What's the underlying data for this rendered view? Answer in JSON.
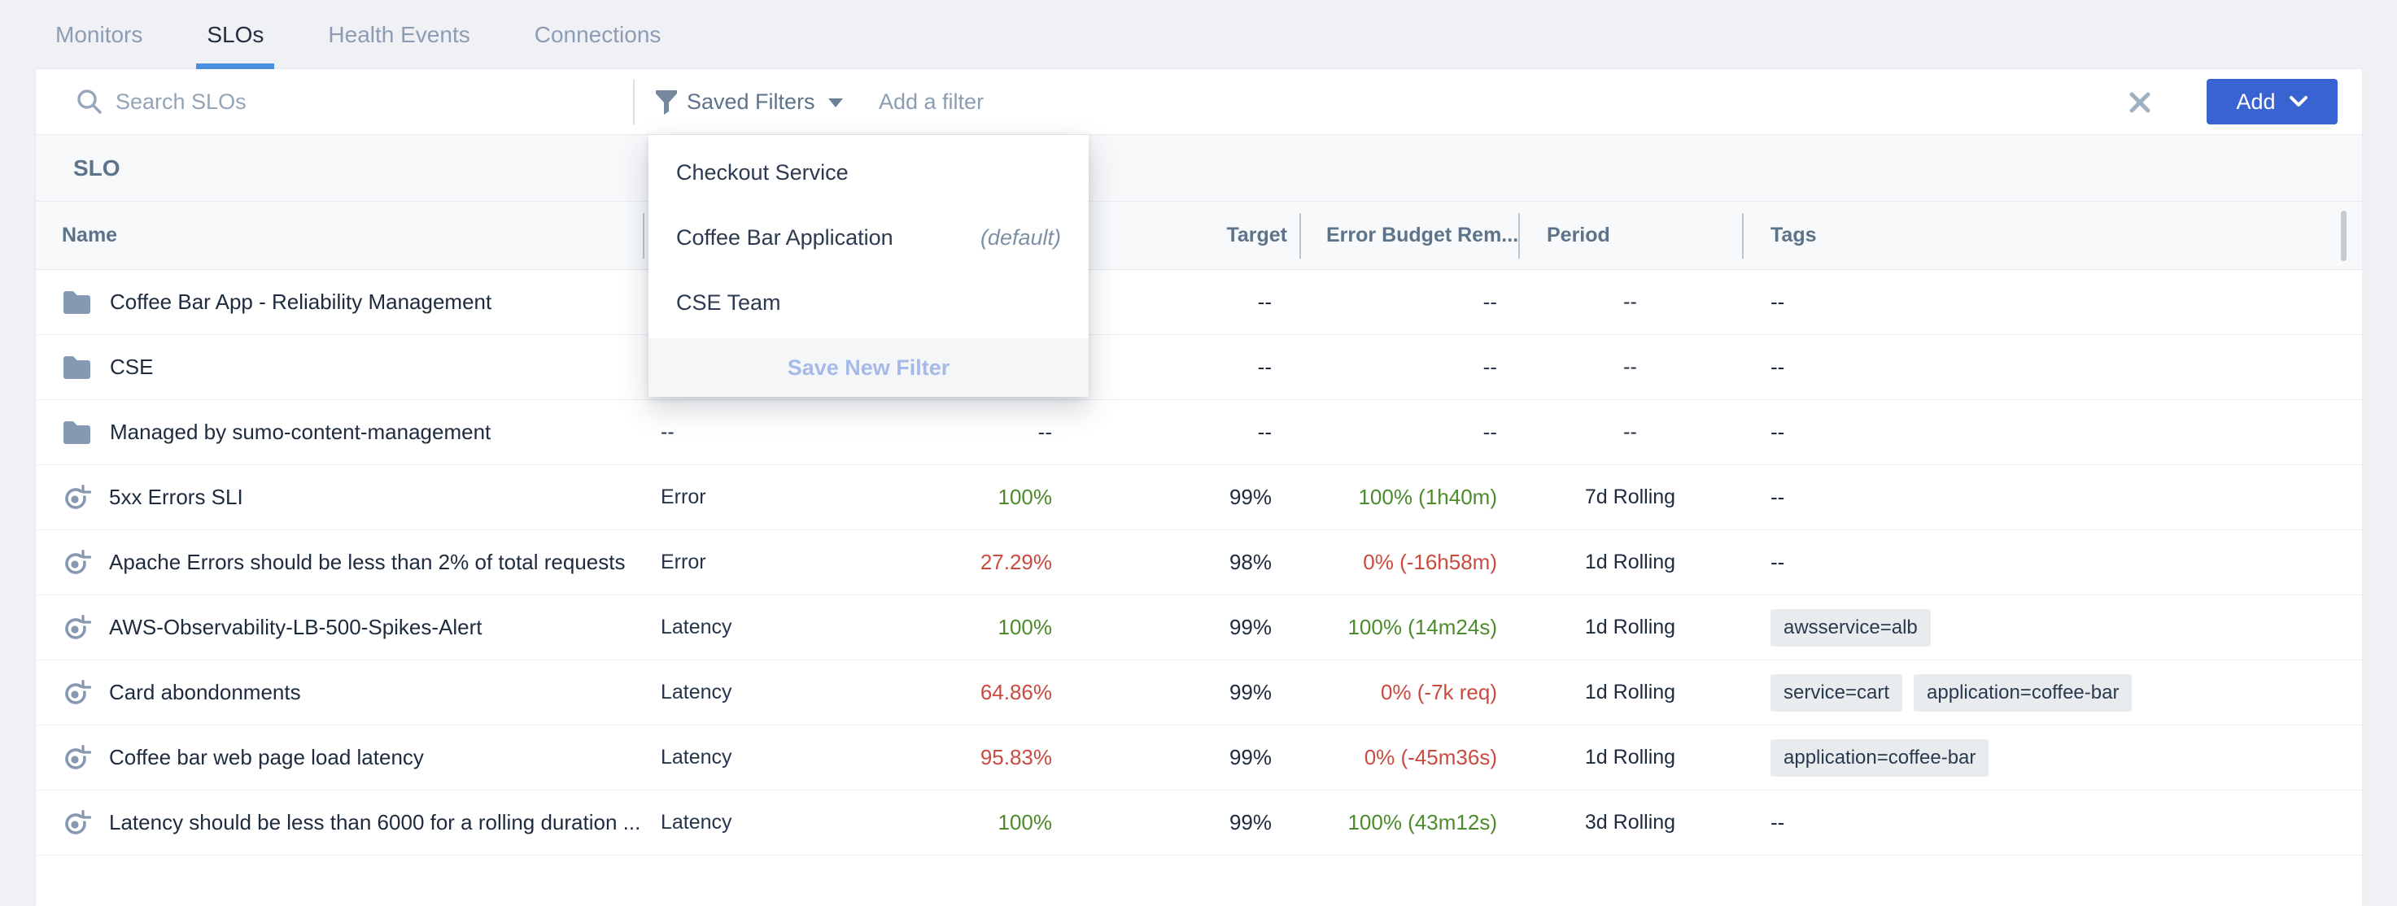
{
  "colors": {
    "accent_blue": "#3a63d2",
    "tab_underline_blue": "#4a90e2",
    "good_green": "#4b8b2b",
    "bad_red": "#c94b3f",
    "chip_bg": "#e9ecef",
    "icon_gray_blue": "#8699b3"
  },
  "tabs": [
    {
      "label": "Monitors",
      "active": false
    },
    {
      "label": "SLOs",
      "active": true
    },
    {
      "label": "Health Events",
      "active": false
    },
    {
      "label": "Connections",
      "active": false
    }
  ],
  "filter_bar": {
    "search_placeholder": "Search SLOs",
    "saved_filters_label": "Saved Filters",
    "add_filter_placeholder": "Add a filter",
    "add_button_label": "Add"
  },
  "saved_filters_menu": {
    "items": [
      {
        "label": "Checkout Service",
        "note": ""
      },
      {
        "label": "Coffee Bar Application",
        "note": "(default)"
      },
      {
        "label": "CSE Team",
        "note": ""
      }
    ],
    "footer_label": "Save New Filter"
  },
  "section_title": "SLO",
  "table": {
    "headers": {
      "name": "Name",
      "signal": "",
      "status": "",
      "target": "Target",
      "budget": "Error Budget Rem...",
      "period": "Period",
      "tags": "Tags"
    },
    "rows": [
      {
        "type": "folder",
        "name": "Coffee Bar App - Reliability Management",
        "signal": "--",
        "status": "--",
        "status_state": "plain",
        "target": "--",
        "budget": "--",
        "budget_state": "plain",
        "period": "--",
        "tags": [],
        "tags_text": "--"
      },
      {
        "type": "folder",
        "name": "CSE",
        "signal": "--",
        "status": "--",
        "status_state": "plain",
        "target": "--",
        "budget": "--",
        "budget_state": "plain",
        "period": "--",
        "tags": [],
        "tags_text": "--"
      },
      {
        "type": "folder",
        "name": "Managed by sumo-content-management",
        "signal": "--",
        "status": "--",
        "status_state": "plain",
        "target": "--",
        "budget": "--",
        "budget_state": "plain",
        "period": "--",
        "tags": [],
        "tags_text": "--"
      },
      {
        "type": "slo",
        "name": "5xx Errors SLI",
        "signal": "Error",
        "status": "100%",
        "status_state": "good",
        "target": "99%",
        "budget": "100% (1h40m)",
        "budget_state": "good",
        "period": "7d Rolling",
        "tags": [],
        "tags_text": "--"
      },
      {
        "type": "slo",
        "name": "Apache Errors should be less than 2% of total requests",
        "signal": "Error",
        "status": "27.29%",
        "status_state": "bad",
        "target": "98%",
        "budget": "0% (-16h58m)",
        "budget_state": "bad",
        "period": "1d Rolling",
        "tags": [],
        "tags_text": "--"
      },
      {
        "type": "slo",
        "name": "AWS-Observability-LB-500-Spikes-Alert",
        "signal": "Latency",
        "status": "100%",
        "status_state": "good",
        "target": "99%",
        "budget": "100% (14m24s)",
        "budget_state": "good",
        "period": "1d Rolling",
        "tags": [
          "awsservice=alb"
        ],
        "tags_text": ""
      },
      {
        "type": "slo",
        "name": "Card abondonments",
        "signal": "Latency",
        "status": "64.86%",
        "status_state": "bad",
        "target": "99%",
        "budget": "0% (-7k req)",
        "budget_state": "bad",
        "period": "1d Rolling",
        "tags": [
          "service=cart",
          "application=coffee-bar"
        ],
        "tags_text": ""
      },
      {
        "type": "slo",
        "name": "Coffee bar web page load latency",
        "signal": "Latency",
        "status": "95.83%",
        "status_state": "bad",
        "target": "99%",
        "budget": "0% (-45m36s)",
        "budget_state": "bad",
        "period": "1d Rolling",
        "tags": [
          "application=coffee-bar"
        ],
        "tags_text": ""
      },
      {
        "type": "slo",
        "name": "Latency should be less than 6000 for a rolling duration ...",
        "signal": "Latency",
        "status": "100%",
        "status_state": "good",
        "target": "99%",
        "budget": "100% (43m12s)",
        "budget_state": "good",
        "period": "3d Rolling",
        "tags": [],
        "tags_text": "--"
      }
    ]
  }
}
